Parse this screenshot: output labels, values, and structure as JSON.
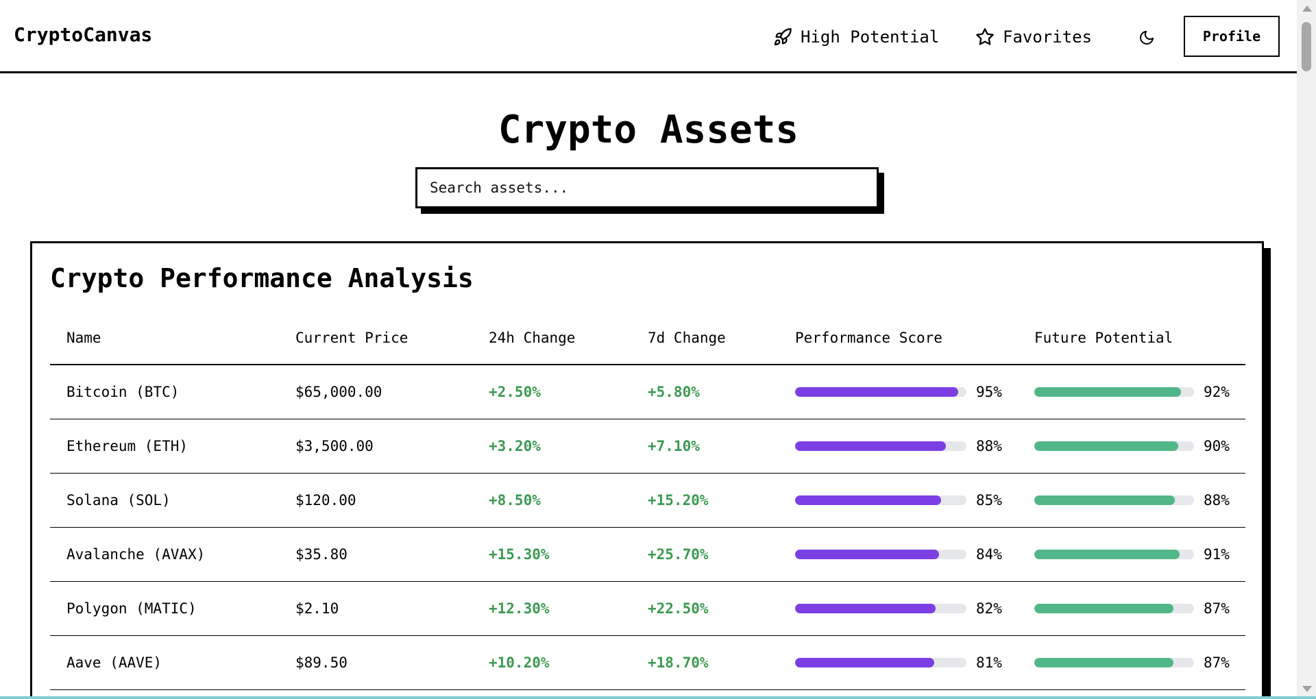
{
  "brand": "CryptoCanvas",
  "nav": {
    "high_potential": {
      "label": "High Potential",
      "icon": "rocket-icon"
    },
    "favorites": {
      "label": "Favorites",
      "icon": "star-icon"
    },
    "theme_toggle_icon": "moon-icon",
    "profile_label": "Profile"
  },
  "page_title": "Crypto Assets",
  "search": {
    "placeholder": "Search assets...",
    "value": ""
  },
  "card": {
    "title": "Crypto Performance Analysis",
    "columns": [
      "Name",
      "Current Price",
      "24h Change",
      "7d Change",
      "Performance Score",
      "Future Potential"
    ],
    "rows": [
      {
        "name": "Bitcoin (BTC)",
        "price": "$65,000.00",
        "change_24h": "+2.50%",
        "change_7d": "+5.80%",
        "performance": 95,
        "performance_label": "95%",
        "future": 92,
        "future_label": "92%"
      },
      {
        "name": "Ethereum (ETH)",
        "price": "$3,500.00",
        "change_24h": "+3.20%",
        "change_7d": "+7.10%",
        "performance": 88,
        "performance_label": "88%",
        "future": 90,
        "future_label": "90%"
      },
      {
        "name": "Solana (SOL)",
        "price": "$120.00",
        "change_24h": "+8.50%",
        "change_7d": "+15.20%",
        "performance": 85,
        "performance_label": "85%",
        "future": 88,
        "future_label": "88%"
      },
      {
        "name": "Avalanche (AVAX)",
        "price": "$35.80",
        "change_24h": "+15.30%",
        "change_7d": "+25.70%",
        "performance": 84,
        "performance_label": "84%",
        "future": 91,
        "future_label": "91%"
      },
      {
        "name": "Polygon (MATIC)",
        "price": "$2.10",
        "change_24h": "+12.30%",
        "change_7d": "+22.50%",
        "performance": 82,
        "performance_label": "82%",
        "future": 87,
        "future_label": "87%"
      },
      {
        "name": "Aave (AAVE)",
        "price": "$89.50",
        "change_24h": "+10.20%",
        "change_7d": "+18.70%",
        "performance": 81,
        "performance_label": "81%",
        "future": 87,
        "future_label": "87%"
      }
    ]
  },
  "colors": {
    "performance_bar": "#7b3fe4",
    "future_bar": "#52b788",
    "positive_text": "#3c9a52",
    "bar_track": "#e5e7eb"
  }
}
